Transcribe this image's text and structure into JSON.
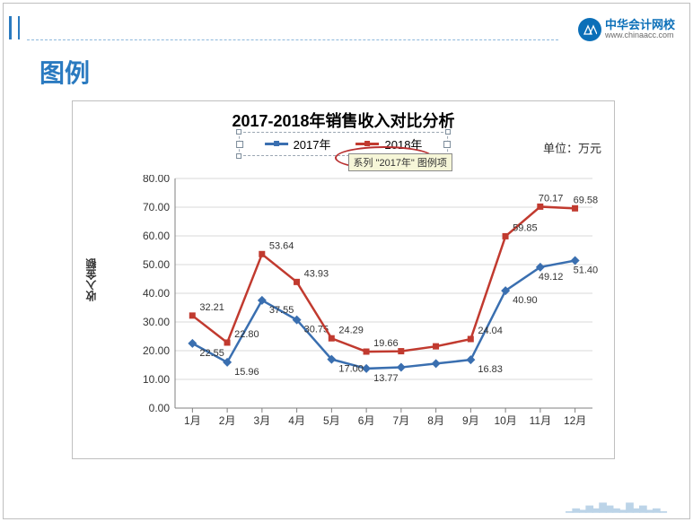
{
  "brand": {
    "cn": "中华会计网校",
    "url": "www.chinaacc.com"
  },
  "page_title": "图例",
  "chart": {
    "type": "line",
    "title": "2017-2018年销售收入对比分析",
    "unit_label": "单位：万元",
    "y_axis_label": "收入金额",
    "tooltip": "系列 \"2017年\" 图例项",
    "background_color": "#ffffff",
    "grid_color": "#d9d9d9",
    "axis_color": "#808080",
    "ylim": [
      0,
      80
    ],
    "ytick_step": 10,
    "y_tick_format": "fixed2",
    "y_ticks": [
      "0.00",
      "10.00",
      "20.00",
      "30.00",
      "40.00",
      "50.00",
      "60.00",
      "70.00",
      "80.00"
    ],
    "categories": [
      "1月",
      "2月",
      "3月",
      "4月",
      "5月",
      "6月",
      "7月",
      "8月",
      "9月",
      "10月",
      "11月",
      "12月"
    ],
    "series": [
      {
        "name": "2017年",
        "color": "#3a6fb0",
        "line_width": 2.5,
        "marker": "diamond",
        "marker_size": 5,
        "values": [
          22.55,
          15.96,
          37.55,
          30.75,
          17.0,
          13.77,
          14.2,
          15.5,
          16.83,
          40.9,
          49.12,
          51.4
        ],
        "labels": {
          "0": "22.55",
          "1": "15.96",
          "2": "37.55",
          "3": "30.75",
          "4": "17.00",
          "5": "13.77",
          "8": "16.83",
          "9": "40.90",
          "10": "49.12",
          "11": "51.40"
        }
      },
      {
        "name": "2018年",
        "color": "#c13a2f",
        "line_width": 2.5,
        "marker": "square",
        "marker_size": 5,
        "values": [
          32.21,
          22.8,
          53.64,
          43.93,
          24.29,
          19.66,
          19.8,
          21.5,
          24.04,
          59.85,
          70.17,
          69.58
        ],
        "labels": {
          "0": "32.21",
          "1": "22.80",
          "2": "53.64",
          "3": "43.93",
          "4": "24.29",
          "5": "19.66",
          "8": "24.04",
          "9": "59.85",
          "10": "70.17",
          "11": "69.58"
        }
      }
    ],
    "legend": {
      "position": "top-center",
      "selected_series_index": 0
    },
    "callout_ellipse_color": "#b93030"
  }
}
